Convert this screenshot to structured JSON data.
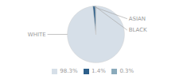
{
  "chart_data": {
    "type": "pie",
    "categories": [
      "WHITE",
      "ASIAN",
      "BLACK"
    ],
    "values": [
      98.3,
      1.4,
      0.3
    ],
    "value_labels": [
      "98.3%",
      "1.4%",
      "0.3%"
    ],
    "colors": [
      "#d6dfe8",
      "#2d5f8a",
      "#8aaabb"
    ],
    "legend": "bottom"
  }
}
